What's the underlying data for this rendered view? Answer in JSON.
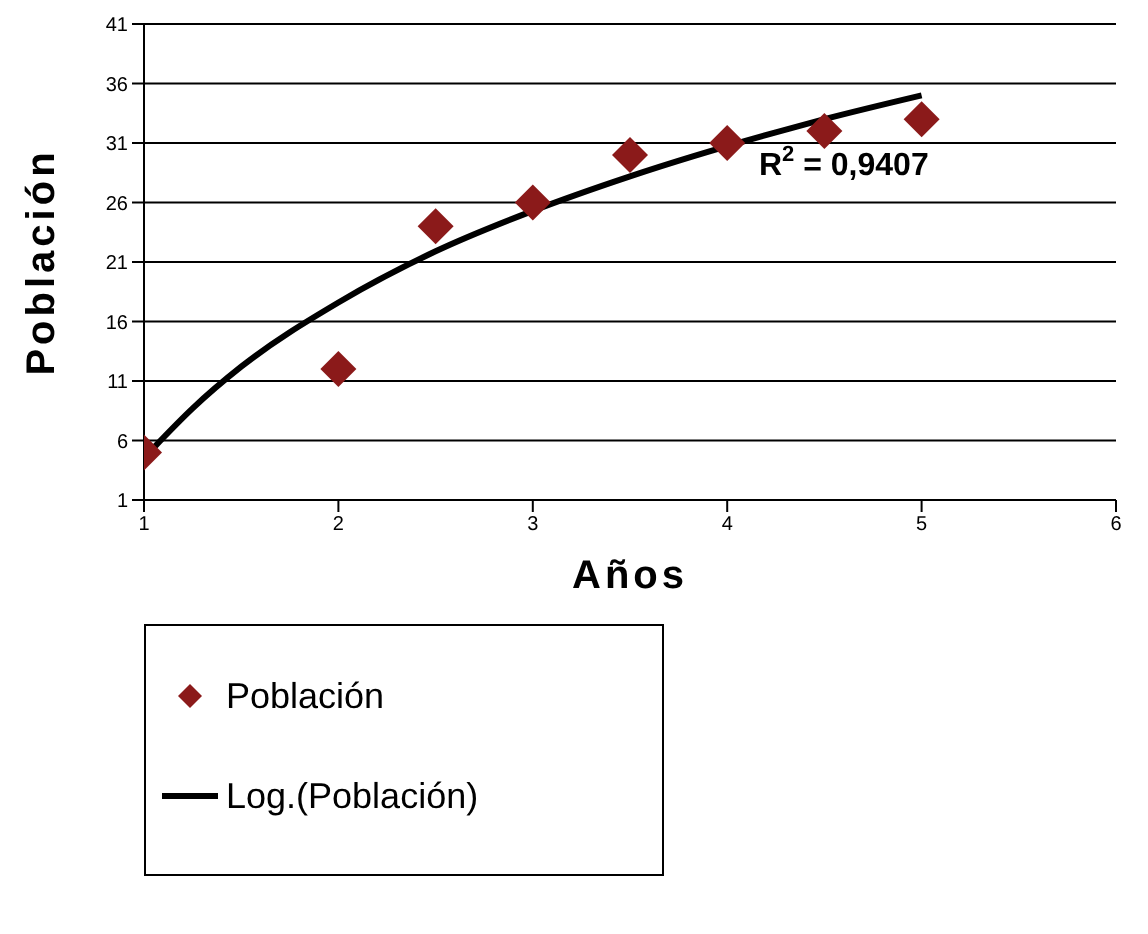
{
  "chart_data": {
    "type": "scatter",
    "xlabel": "Años",
    "ylabel": "Población",
    "xlim": [
      1,
      6
    ],
    "xticks": [
      1,
      2,
      3,
      4,
      5,
      6
    ],
    "ylim": [
      1,
      41
    ],
    "yticks": [
      1,
      6,
      11,
      16,
      21,
      26,
      31,
      36,
      41
    ],
    "grid": "y",
    "legend": "bottom left",
    "series": [
      {
        "name": "Población",
        "marker": "diamond",
        "color": "#8b1a1a",
        "x": [
          1,
          2,
          2.5,
          3,
          3.5,
          4,
          4.5,
          5
        ],
        "values": [
          5,
          12,
          24,
          26,
          30,
          31,
          32,
          33
        ]
      },
      {
        "name": "Log.(Población)",
        "type": "line",
        "marker": "none",
        "line_style": "solid",
        "color": "#000000",
        "x": [
          1.05,
          1.25,
          1.5,
          2,
          2.5,
          3,
          3.5,
          4.25,
          4.5,
          5
        ],
        "values": [
          5.4,
          8.7,
          12.2,
          17.6,
          21.9,
          25.3,
          28.2,
          31.9,
          33,
          35
        ]
      }
    ],
    "annotations": [
      "R$^{2}$ = 0,9407"
    ]
  }
}
